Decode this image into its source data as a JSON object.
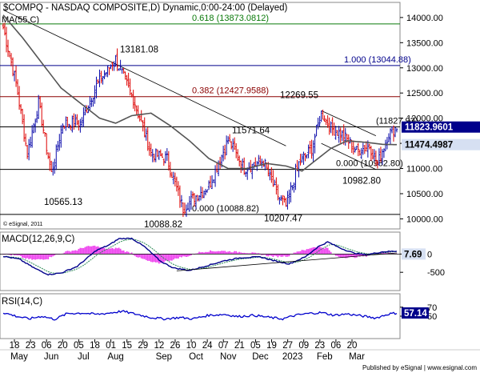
{
  "header": {
    "title": "$COMPQ - NASDAQ COMPOSITE,D) Dynamic,0:00-24:00 (Delayed)",
    "ma_label": "MA(55,C)"
  },
  "footer": {
    "esignal_mark": "© eSignal, 2011",
    "published": "Published by eSignal | www.esignal.com"
  },
  "colors": {
    "bull": "#0a0aaa",
    "bear": "#dd0000",
    "ma": "#555555",
    "fib_red": "#8b0000",
    "fib_blue": "#00008b",
    "fib_green": "#0a7a0a",
    "macd_line": "#00008b",
    "signal_line": "#2e8b57",
    "hist": "#ee44ee",
    "rsi_line": "#0000cc",
    "panel_border": "#888888",
    "tag_dark": "#00008b",
    "tag_light": "#d6e0f2"
  },
  "chart_data": [
    {
      "type": "candlestick",
      "name": "price",
      "ylim": [
        9800,
        14300
      ],
      "y_ticks": [
        "14000.00",
        "13500.00",
        "13000.00",
        "12500.00",
        "12000.00",
        "11500.00",
        "11000.00",
        "10500.00",
        "10000.00"
      ],
      "y_tick_values": [
        14000,
        13500,
        13000,
        12500,
        12000,
        11500,
        11000,
        10500,
        10000
      ],
      "x_ticks": [
        {
          "day": "18",
          "month": "May"
        },
        {
          "day": "23",
          "month": ""
        },
        {
          "day": "06",
          "month": "Jun"
        },
        {
          "day": "20",
          "month": ""
        },
        {
          "day": "05",
          "month": "Jul"
        },
        {
          "day": "18",
          "month": ""
        },
        {
          "day": "01",
          "month": "Aug"
        },
        {
          "day": "15",
          "month": ""
        },
        {
          "day": "29",
          "month": ""
        },
        {
          "day": "12",
          "month": "Sep"
        },
        {
          "day": "26",
          "month": ""
        },
        {
          "day": "10",
          "month": "Oct"
        },
        {
          "day": "24",
          "month": ""
        },
        {
          "day": "07",
          "month": "Nov"
        },
        {
          "day": "21",
          "month": ""
        },
        {
          "day": "05",
          "month": "Dec"
        },
        {
          "day": "19",
          "month": ""
        },
        {
          "day": "27",
          "month": "2023"
        },
        {
          "day": "09",
          "month": ""
        },
        {
          "day": "23",
          "month": "Feb"
        },
        {
          "day": "06",
          "month": ""
        },
        {
          "day": "20",
          "month": "Mar"
        }
      ],
      "fib_levels": [
        {
          "label": "0.618 (13873.0812)",
          "value": 13873.0812,
          "color": "#0a7a0a"
        },
        {
          "label": "1.000 (13044.88)",
          "value": 13044.88,
          "color": "#00008b"
        },
        {
          "label": "0.382 (12427.9588)",
          "value": 12427.9588,
          "color": "#8b0000"
        },
        {
          "label": "(11827.92)",
          "value": 11827.92,
          "color": "#000000"
        },
        {
          "label": "0.000 (10982.80)",
          "value": 10982.8,
          "color": "#000000"
        },
        {
          "label": "0.000 (10088.82)",
          "value": 10088.82,
          "color": "#000000"
        }
      ],
      "annotations": [
        {
          "text": "13181.08",
          "value": 13181.08
        },
        {
          "text": "12269.55",
          "value": 12269.55
        },
        {
          "text": "11571.64",
          "value": 11571.64
        },
        {
          "text": "10565.13",
          "value": 10565.13
        },
        {
          "text": "10088.82",
          "value": 10088.82
        },
        {
          "text": "10207.47",
          "value": 10207.47
        },
        {
          "text": "10982.80",
          "value": 10982.8
        }
      ],
      "price_tags": [
        {
          "text": "11823.9601",
          "value": 11823.9601,
          "style": "dark"
        },
        {
          "text": "11474.4987",
          "value": 11474.4987,
          "style": "light"
        }
      ],
      "close_anchors": [
        [
          0,
          13800
        ],
        [
          8,
          12700
        ],
        [
          15,
          11300
        ],
        [
          22,
          12300
        ],
        [
          30,
          10900
        ],
        [
          37,
          11900
        ],
        [
          48,
          11900
        ],
        [
          58,
          12650
        ],
        [
          70,
          13181
        ],
        [
          82,
          12300
        ],
        [
          92,
          11300
        ],
        [
          102,
          11200
        ],
        [
          112,
          10200
        ],
        [
          118,
          10400
        ],
        [
          128,
          10650
        ],
        [
          140,
          11571
        ],
        [
          150,
          11000
        ],
        [
          162,
          11150
        ],
        [
          170,
          10500
        ],
        [
          176,
          10250
        ],
        [
          184,
          11100
        ],
        [
          192,
          11400
        ],
        [
          198,
          12100
        ],
        [
          204,
          11800
        ],
        [
          212,
          11650
        ],
        [
          220,
          11350
        ],
        [
          228,
          11450
        ],
        [
          233,
          11100
        ],
        [
          240,
          11700
        ],
        [
          245,
          11824
        ]
      ],
      "ma55_anchors": [
        [
          0,
          14050
        ],
        [
          12,
          13600
        ],
        [
          24,
          13100
        ],
        [
          36,
          12600
        ],
        [
          50,
          12250
        ],
        [
          60,
          12000
        ],
        [
          70,
          11900
        ],
        [
          80,
          12050
        ],
        [
          92,
          12100
        ],
        [
          104,
          11850
        ],
        [
          116,
          11550
        ],
        [
          128,
          11200
        ],
        [
          140,
          11000
        ],
        [
          152,
          11000
        ],
        [
          164,
          11100
        ],
        [
          176,
          11050
        ],
        [
          186,
          10950
        ],
        [
          194,
          11150
        ],
        [
          204,
          11400
        ],
        [
          214,
          11550
        ],
        [
          226,
          11520
        ],
        [
          236,
          11480
        ],
        [
          245,
          11474
        ]
      ]
    },
    {
      "type": "line",
      "name": "MACD",
      "title": "MACD(12,26,9,C)",
      "ylim": [
        -1000,
        600
      ],
      "y_ticks": [
        "0",
        "-500"
      ],
      "y_tick_values": [
        0,
        -500
      ],
      "tag": "7.69",
      "macd_anchors": [
        [
          0,
          -60
        ],
        [
          10,
          -140
        ],
        [
          20,
          -400
        ],
        [
          28,
          -560
        ],
        [
          36,
          -520
        ],
        [
          46,
          -340
        ],
        [
          58,
          100
        ],
        [
          66,
          250
        ],
        [
          72,
          420
        ],
        [
          80,
          430
        ],
        [
          88,
          200
        ],
        [
          98,
          -200
        ],
        [
          106,
          -380
        ],
        [
          116,
          -450
        ],
        [
          126,
          -330
        ],
        [
          138,
          -180
        ],
        [
          148,
          -100
        ],
        [
          160,
          -80
        ],
        [
          170,
          -200
        ],
        [
          178,
          -270
        ],
        [
          188,
          -80
        ],
        [
          196,
          200
        ],
        [
          202,
          330
        ],
        [
          210,
          160
        ],
        [
          218,
          30
        ],
        [
          226,
          -20
        ],
        [
          236,
          60
        ],
        [
          245,
          80
        ]
      ]
    },
    {
      "type": "line",
      "name": "RSI",
      "title": "RSI(14,C)",
      "ylim": [
        0,
        100
      ],
      "y_ticks": [
        "70",
        "50"
      ],
      "y_tick_values": [
        70,
        50
      ],
      "tag": "57.14",
      "rsi_anchors": [
        [
          0,
          58
        ],
        [
          8,
          50
        ],
        [
          16,
          44
        ],
        [
          24,
          50
        ],
        [
          32,
          43
        ],
        [
          40,
          56
        ],
        [
          50,
          57
        ],
        [
          58,
          54
        ],
        [
          66,
          57
        ],
        [
          74,
          61
        ],
        [
          82,
          55
        ],
        [
          92,
          47
        ],
        [
          100,
          44
        ],
        [
          110,
          47
        ],
        [
          118,
          44
        ],
        [
          128,
          52
        ],
        [
          138,
          54
        ],
        [
          146,
          49
        ],
        [
          156,
          52
        ],
        [
          166,
          47
        ],
        [
          174,
          44
        ],
        [
          182,
          52
        ],
        [
          190,
          56
        ],
        [
          198,
          58
        ],
        [
          206,
          52
        ],
        [
          214,
          55
        ],
        [
          224,
          50
        ],
        [
          232,
          46
        ],
        [
          240,
          55
        ],
        [
          245,
          57
        ]
      ]
    }
  ]
}
